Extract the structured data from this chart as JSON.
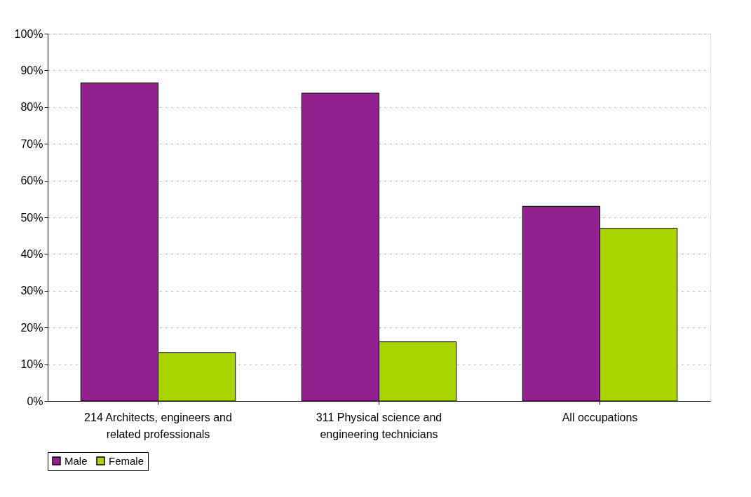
{
  "chart_data": {
    "type": "bar",
    "categories": [
      "214 Architects, engineers and related professionals",
      "311 Physical science and engineering technicians",
      "All occupations"
    ],
    "series": [
      {
        "name": "Male",
        "color": "#92208f",
        "values": [
          86.6,
          83.8,
          53
        ]
      },
      {
        "name": "Female",
        "color": "#aad400",
        "values": [
          13.2,
          16.1,
          47
        ]
      }
    ],
    "ylim": [
      0,
      100
    ],
    "yticks": [
      {
        "value": 0,
        "label": "0%"
      },
      {
        "value": 10,
        "label": "10%"
      },
      {
        "value": 20,
        "label": "20%"
      },
      {
        "value": 30,
        "label": "30%"
      },
      {
        "value": 40,
        "label": "40%"
      },
      {
        "value": 50,
        "label": "50%"
      },
      {
        "value": 60,
        "label": "60%"
      },
      {
        "value": 70,
        "label": "70%"
      },
      {
        "value": 80,
        "label": "80%"
      },
      {
        "value": 90,
        "label": "90%"
      },
      {
        "value": 100,
        "label": "100%"
      }
    ],
    "grid": "y",
    "legend": "bottom"
  }
}
